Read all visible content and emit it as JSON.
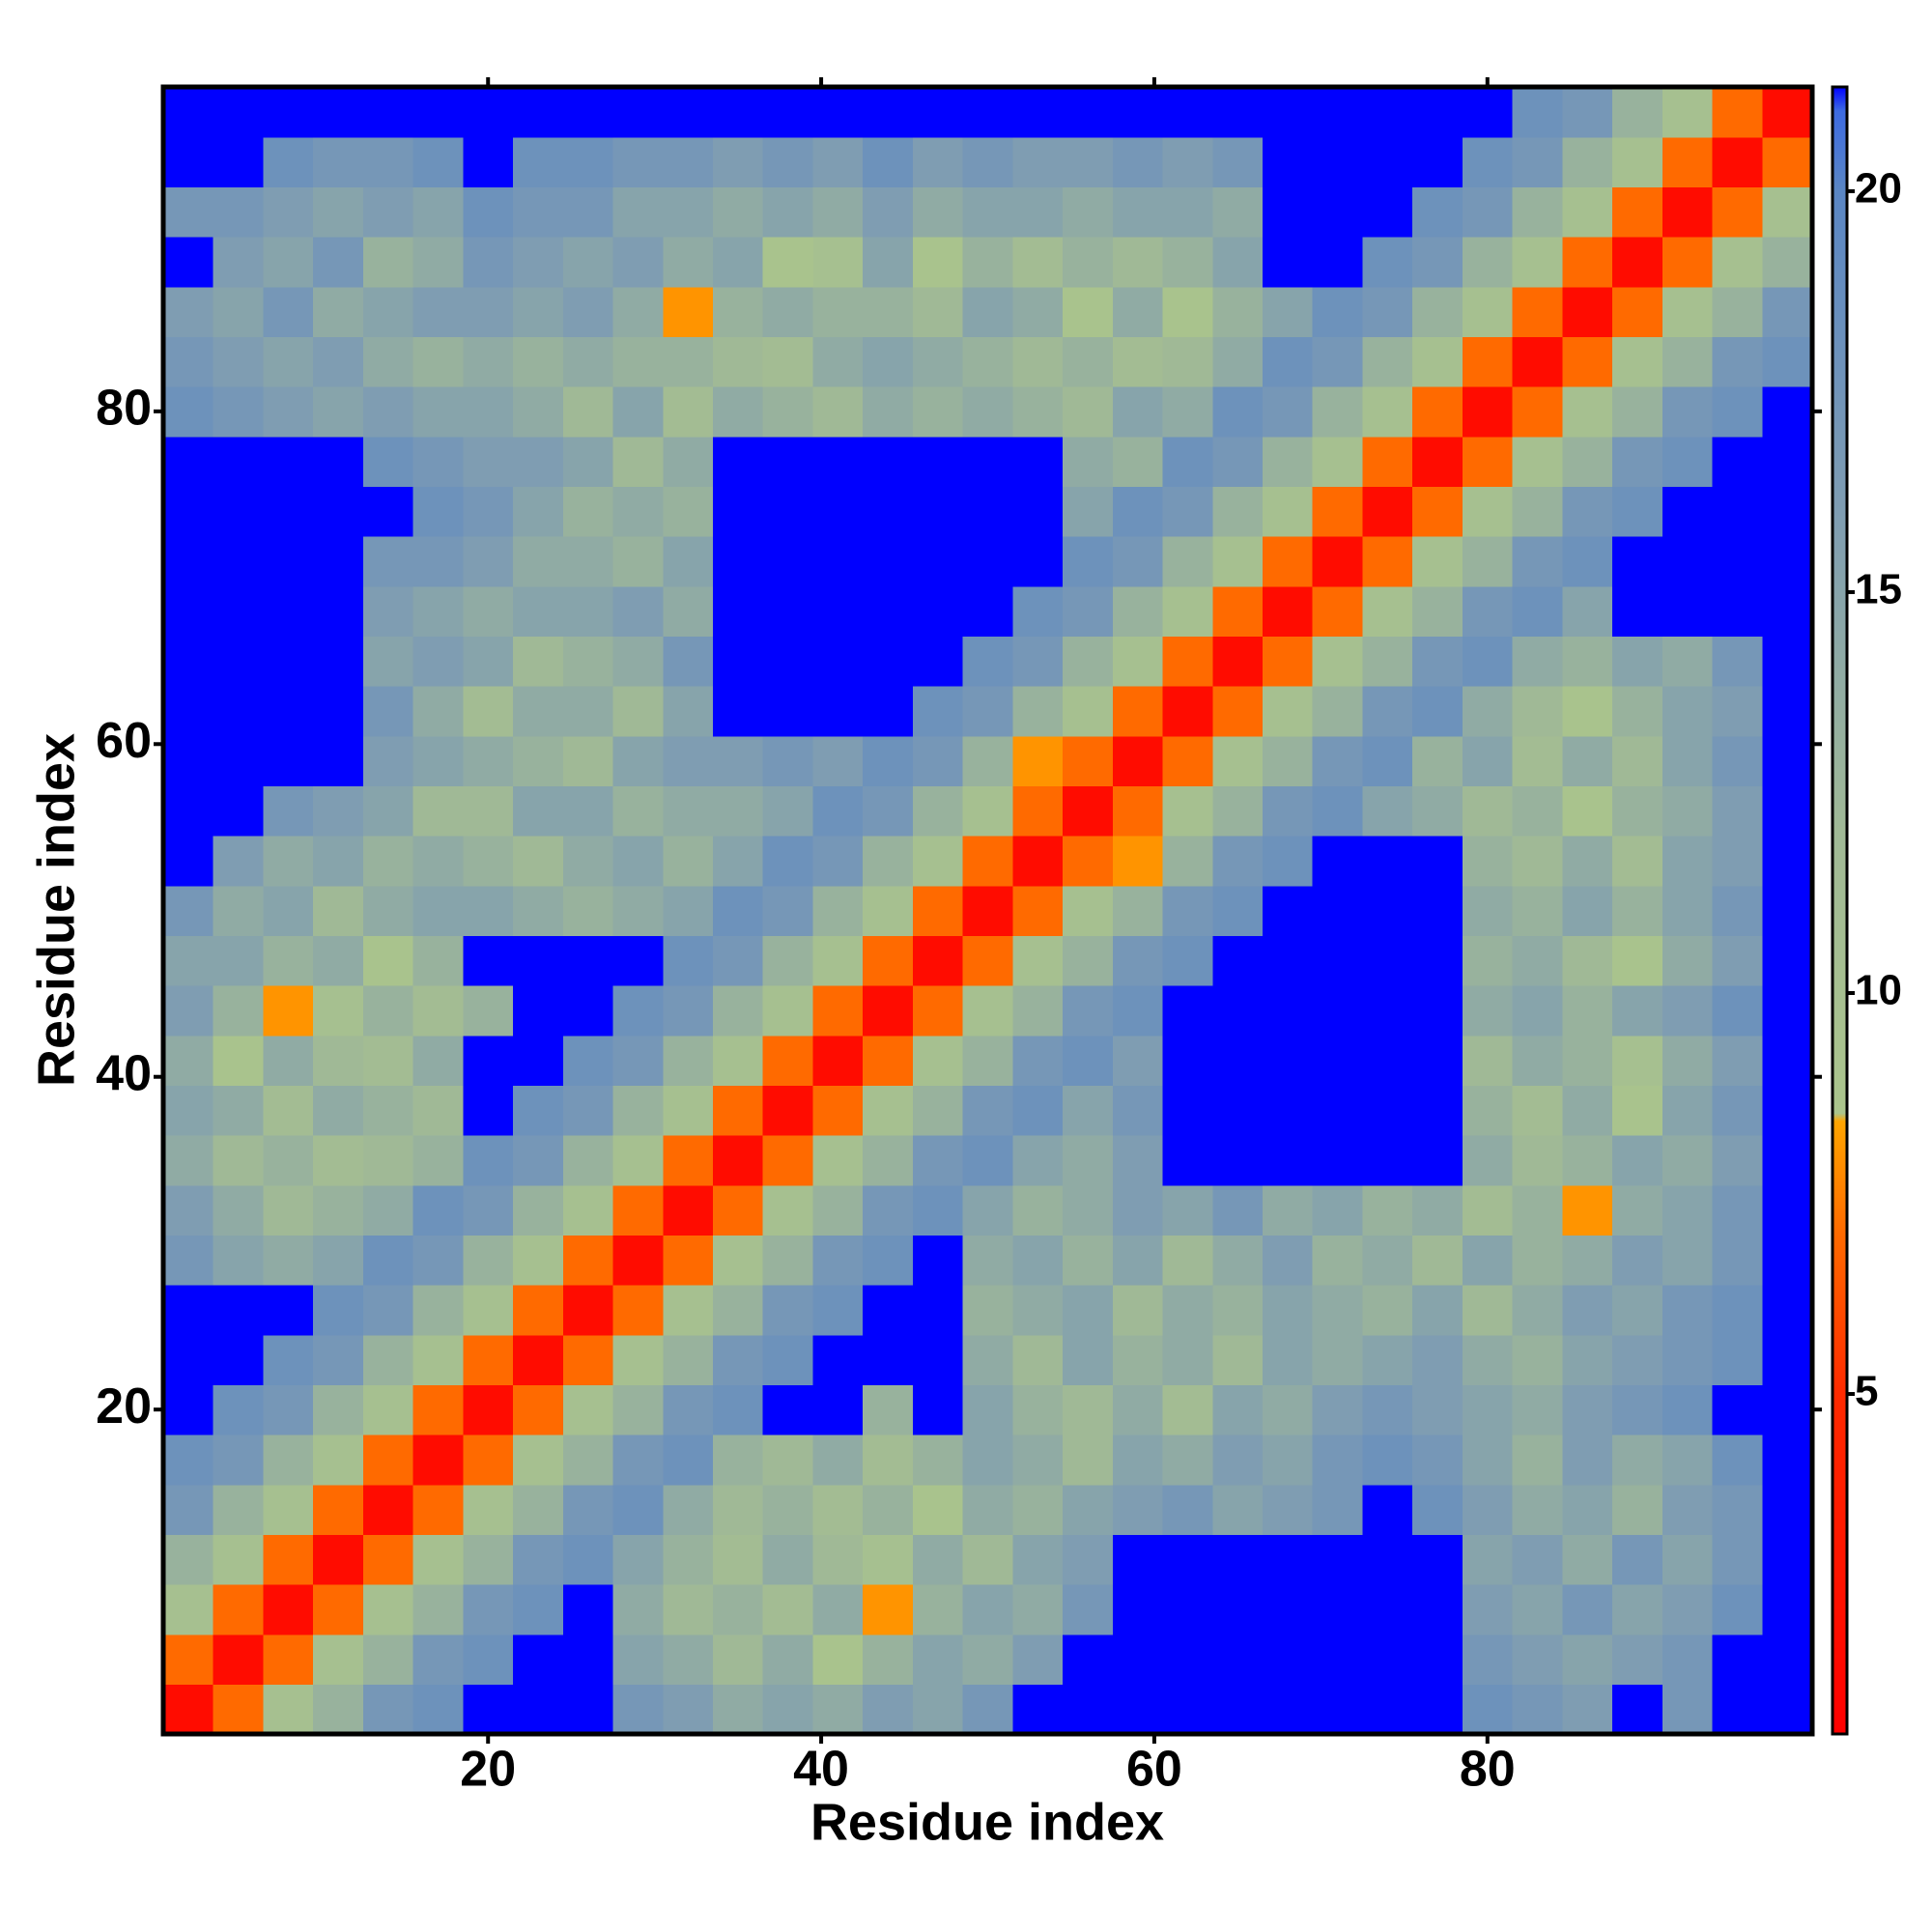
{
  "chart_data": {
    "type": "heatmap",
    "xlabel": "Residue index",
    "ylabel": "Residue index",
    "x": [
      2,
      5,
      8,
      11,
      14,
      17,
      20,
      23,
      26,
      29,
      32,
      35,
      38,
      41,
      44,
      47,
      50,
      53,
      56,
      59,
      62,
      65,
      68,
      71,
      74,
      77,
      80,
      83,
      86,
      89,
      92,
      95,
      98
    ],
    "y": [
      2,
      5,
      8,
      11,
      14,
      17,
      20,
      23,
      26,
      29,
      32,
      35,
      38,
      41,
      44,
      47,
      50,
      53,
      56,
      59,
      62,
      65,
      68,
      71,
      74,
      77,
      80,
      83,
      86,
      89,
      92,
      95,
      98
    ],
    "xlim": [
      0.5,
      99.5
    ],
    "ylim": [
      0.5,
      99.5
    ],
    "xticks": [
      20,
      40,
      60,
      80
    ],
    "yticks": [
      20,
      40,
      60,
      80
    ],
    "zlim": [
      0.76,
      21.3
    ],
    "zticks": [
      5,
      10,
      15,
      20
    ],
    "colorscale": [
      [
        0.76,
        "#ff0000"
      ],
      [
        5,
        "#ff2a00"
      ],
      [
        7,
        "#ff6a00"
      ],
      [
        8.4,
        "#ffa500"
      ],
      [
        8.5,
        "#abc58c"
      ],
      [
        12,
        "#a0b996"
      ],
      [
        16,
        "#7f9db2"
      ],
      [
        20,
        "#5a86c4"
      ],
      [
        21,
        "#3d6be2"
      ],
      [
        21.3,
        "#0000ff"
      ]
    ],
    "values": [
      [
        2,
        7,
        10,
        13,
        17,
        18,
        22,
        22,
        22,
        17,
        16,
        14,
        15,
        14,
        16,
        15,
        17,
        22,
        22,
        22,
        22,
        22,
        22,
        22,
        22,
        22,
        18,
        17,
        16,
        22,
        17,
        22,
        22
      ],
      [
        7,
        2,
        7,
        10,
        13,
        17,
        18,
        22,
        22,
        15,
        14,
        12,
        14,
        9,
        13,
        15,
        14,
        16,
        22,
        22,
        22,
        22,
        22,
        22,
        22,
        22,
        17,
        16,
        15,
        16,
        17,
        22,
        22
      ],
      [
        10,
        7,
        2,
        7,
        10,
        13,
        17,
        18,
        22,
        14,
        12,
        13,
        11,
        14,
        8,
        13,
        15,
        14,
        17,
        22,
        22,
        22,
        22,
        22,
        22,
        22,
        16,
        15,
        17,
        15,
        16,
        18,
        22
      ],
      [
        13,
        10,
        7,
        2,
        7,
        10,
        13,
        17,
        18,
        15,
        13,
        11,
        14,
        12,
        10,
        14,
        12,
        15,
        16,
        22,
        22,
        22,
        22,
        22,
        22,
        22,
        15,
        16,
        14,
        17,
        15,
        17,
        22
      ],
      [
        17,
        13,
        10,
        7,
        2,
        7,
        10,
        13,
        17,
        18,
        14,
        12,
        13,
        11,
        13,
        9,
        14,
        13,
        15,
        16,
        17,
        15,
        16,
        17,
        22,
        18,
        16,
        14,
        15,
        13,
        16,
        17,
        22
      ],
      [
        18,
        17,
        13,
        10,
        7,
        2,
        7,
        10,
        13,
        17,
        18,
        13,
        12,
        14,
        11,
        13,
        15,
        14,
        12,
        15,
        14,
        16,
        15,
        17,
        18,
        17,
        15,
        13,
        16,
        14,
        15,
        18,
        22
      ],
      [
        22,
        18,
        17,
        13,
        10,
        7,
        2,
        7,
        10,
        13,
        17,
        18,
        22,
        22,
        13,
        22,
        15,
        13,
        12,
        14,
        11,
        15,
        14,
        16,
        17,
        16,
        15,
        14,
        16,
        17,
        18,
        22,
        22
      ],
      [
        22,
        22,
        18,
        17,
        13,
        10,
        7,
        2,
        7,
        10,
        13,
        17,
        18,
        22,
        22,
        22,
        14,
        12,
        15,
        13,
        14,
        12,
        15,
        14,
        15,
        16,
        14,
        13,
        15,
        16,
        17,
        18,
        22
      ],
      [
        22,
        22,
        22,
        18,
        17,
        13,
        10,
        7,
        2,
        7,
        10,
        13,
        17,
        18,
        22,
        22,
        13,
        14,
        15,
        12,
        14,
        13,
        15,
        14,
        13,
        15,
        12,
        14,
        16,
        15,
        17,
        18,
        22
      ],
      [
        17,
        15,
        14,
        15,
        18,
        17,
        13,
        10,
        7,
        2,
        7,
        10,
        13,
        17,
        18,
        22,
        14,
        15,
        13,
        15,
        12,
        14,
        16,
        13,
        14,
        12,
        15,
        13,
        14,
        16,
        15,
        17,
        22
      ],
      [
        16,
        14,
        12,
        13,
        14,
        18,
        17,
        13,
        10,
        7,
        2,
        7,
        10,
        13,
        17,
        18,
        15,
        13,
        14,
        16,
        15,
        17,
        14,
        15,
        13,
        14,
        11,
        13,
        8,
        14,
        15,
        17,
        22
      ],
      [
        14,
        12,
        13,
        11,
        12,
        13,
        18,
        17,
        13,
        10,
        7,
        2,
        7,
        10,
        13,
        17,
        18,
        15,
        14,
        16,
        22,
        22,
        22,
        22,
        22,
        22,
        14,
        12,
        13,
        15,
        14,
        16,
        22
      ],
      [
        15,
        14,
        11,
        14,
        13,
        12,
        22,
        18,
        17,
        13,
        10,
        7,
        2,
        7,
        10,
        13,
        17,
        18,
        15,
        17,
        22,
        22,
        22,
        22,
        22,
        22,
        13,
        11,
        14,
        9,
        15,
        17,
        22
      ],
      [
        14,
        9,
        14,
        12,
        11,
        14,
        22,
        22,
        18,
        17,
        13,
        10,
        7,
        2,
        7,
        10,
        13,
        17,
        18,
        16,
        22,
        22,
        22,
        22,
        22,
        22,
        12,
        14,
        13,
        10,
        14,
        16,
        22
      ],
      [
        16,
        13,
        8,
        10,
        13,
        11,
        13,
        22,
        22,
        18,
        17,
        13,
        10,
        7,
        2,
        7,
        10,
        13,
        17,
        18,
        22,
        22,
        22,
        22,
        22,
        22,
        14,
        15,
        13,
        15,
        16,
        18,
        22
      ],
      [
        15,
        15,
        13,
        14,
        9,
        13,
        22,
        22,
        22,
        22,
        18,
        17,
        13,
        10,
        7,
        2,
        7,
        10,
        13,
        17,
        18,
        22,
        22,
        22,
        22,
        22,
        13,
        14,
        12,
        9,
        14,
        16,
        22
      ],
      [
        17,
        14,
        15,
        12,
        14,
        15,
        15,
        14,
        13,
        14,
        15,
        18,
        17,
        13,
        10,
        7,
        2,
        7,
        10,
        13,
        17,
        18,
        22,
        22,
        22,
        22,
        14,
        13,
        15,
        13,
        15,
        17,
        22
      ],
      [
        22,
        16,
        14,
        15,
        13,
        14,
        13,
        12,
        14,
        15,
        13,
        15,
        18,
        17,
        13,
        10,
        7,
        2,
        7,
        8,
        13,
        17,
        18,
        22,
        22,
        22,
        13,
        12,
        14,
        11,
        15,
        16,
        22
      ],
      [
        22,
        22,
        17,
        16,
        15,
        12,
        12,
        15,
        15,
        13,
        14,
        14,
        15,
        18,
        17,
        13,
        10,
        7,
        2,
        7,
        10,
        13,
        17,
        18,
        15,
        14,
        12,
        13,
        9,
        13,
        14,
        16,
        22
      ],
      [
        22,
        22,
        22,
        22,
        16,
        15,
        14,
        13,
        12,
        15,
        16,
        16,
        17,
        16,
        18,
        17,
        13,
        8,
        7,
        2,
        7,
        10,
        13,
        17,
        18,
        13,
        15,
        11,
        14,
        12,
        15,
        17,
        22
      ],
      [
        22,
        22,
        22,
        22,
        17,
        14,
        11,
        14,
        14,
        12,
        15,
        22,
        22,
        22,
        22,
        18,
        17,
        13,
        10,
        7,
        2,
        7,
        10,
        13,
        17,
        18,
        14,
        12,
        9,
        13,
        15,
        16,
        22
      ],
      [
        22,
        22,
        22,
        22,
        15,
        16,
        15,
        12,
        13,
        14,
        17,
        22,
        22,
        22,
        22,
        22,
        18,
        17,
        13,
        10,
        7,
        2,
        7,
        10,
        13,
        17,
        18,
        14,
        13,
        15,
        14,
        17,
        22
      ],
      [
        22,
        22,
        22,
        22,
        16,
        15,
        14,
        15,
        15,
        16,
        14,
        22,
        22,
        22,
        22,
        22,
        22,
        18,
        17,
        13,
        10,
        7,
        2,
        7,
        10,
        13,
        17,
        18,
        15,
        22,
        22,
        22,
        22
      ],
      [
        22,
        22,
        22,
        22,
        17,
        17,
        16,
        14,
        14,
        13,
        15,
        22,
        22,
        22,
        22,
        22,
        22,
        22,
        18,
        17,
        13,
        10,
        7,
        2,
        7,
        10,
        13,
        17,
        18,
        22,
        22,
        22,
        22
      ],
      [
        22,
        22,
        22,
        22,
        22,
        18,
        17,
        15,
        13,
        14,
        13,
        22,
        22,
        22,
        22,
        22,
        22,
        22,
        15,
        18,
        17,
        13,
        10,
        7,
        2,
        7,
        10,
        13,
        17,
        18,
        22,
        22,
        22
      ],
      [
        22,
        22,
        22,
        22,
        18,
        17,
        16,
        16,
        15,
        12,
        14,
        22,
        22,
        22,
        22,
        22,
        22,
        22,
        14,
        13,
        18,
        17,
        13,
        10,
        7,
        2,
        7,
        10,
        13,
        17,
        18,
        22,
        22
      ],
      [
        18,
        17,
        16,
        15,
        16,
        15,
        15,
        14,
        12,
        15,
        11,
        14,
        13,
        12,
        14,
        13,
        14,
        13,
        12,
        15,
        14,
        18,
        17,
        13,
        10,
        7,
        2,
        7,
        10,
        13,
        17,
        18,
        22
      ],
      [
        17,
        16,
        15,
        16,
        14,
        13,
        14,
        13,
        14,
        13,
        13,
        12,
        11,
        14,
        15,
        14,
        13,
        12,
        13,
        11,
        12,
        14,
        18,
        17,
        13,
        10,
        7,
        2,
        7,
        10,
        13,
        17,
        18
      ],
      [
        16,
        15,
        17,
        14,
        15,
        16,
        16,
        15,
        16,
        14,
        8,
        13,
        14,
        13,
        13,
        12,
        15,
        14,
        9,
        14,
        9,
        13,
        15,
        18,
        17,
        13,
        10,
        7,
        2,
        7,
        10,
        13,
        17
      ],
      [
        22,
        16,
        15,
        17,
        13,
        14,
        17,
        16,
        15,
        16,
        14,
        15,
        9,
        10,
        15,
        9,
        13,
        11,
        13,
        12,
        13,
        15,
        22,
        22,
        18,
        17,
        13,
        10,
        7,
        2,
        7,
        10,
        13
      ],
      [
        17,
        17,
        16,
        15,
        16,
        15,
        18,
        17,
        17,
        15,
        15,
        14,
        15,
        14,
        16,
        14,
        15,
        15,
        14,
        15,
        15,
        14,
        22,
        22,
        22,
        18,
        17,
        13,
        10,
        7,
        2,
        7,
        10
      ],
      [
        22,
        22,
        18,
        17,
        17,
        18,
        22,
        18,
        18,
        17,
        17,
        16,
        17,
        16,
        18,
        16,
        17,
        16,
        16,
        17,
        16,
        17,
        22,
        22,
        22,
        22,
        18,
        17,
        13,
        10,
        7,
        2,
        7
      ],
      [
        22,
        22,
        22,
        22,
        22,
        22,
        22,
        22,
        22,
        22,
        22,
        22,
        22,
        22,
        22,
        22,
        22,
        22,
        22,
        22,
        22,
        22,
        22,
        22,
        22,
        22,
        22,
        18,
        17,
        13,
        10,
        7,
        2
      ]
    ]
  }
}
